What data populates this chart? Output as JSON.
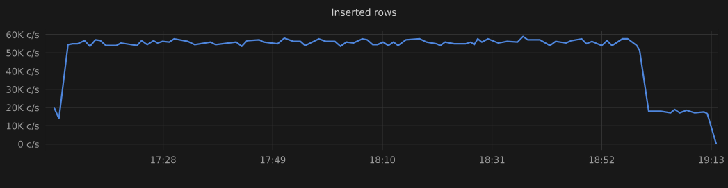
{
  "chart_data": {
    "type": "line",
    "title": "Inserted rows",
    "x": [
      17.119,
      17.134,
      17.163,
      17.178,
      17.194,
      17.216,
      17.233,
      17.251,
      17.266,
      17.284,
      17.317,
      17.332,
      17.383,
      17.398,
      17.416,
      17.436,
      17.449,
      17.465,
      17.486,
      17.502,
      17.546,
      17.568,
      17.619,
      17.634,
      17.7,
      17.718,
      17.735,
      17.773,
      17.788,
      17.832,
      17.854,
      17.883,
      17.905,
      17.92,
      17.964,
      17.986,
      18.015,
      18.033,
      18.052,
      18.074,
      18.103,
      18.118,
      18.136,
      18.151,
      18.169,
      18.186,
      18.202,
      18.217,
      18.242,
      18.286,
      18.308,
      18.339,
      18.352,
      18.367,
      18.396,
      18.433,
      18.449,
      18.46,
      18.471,
      18.484,
      18.504,
      18.537,
      18.565,
      18.598,
      18.616,
      18.631,
      18.669,
      18.702,
      18.72,
      18.753,
      18.77,
      18.803,
      18.818,
      18.836,
      18.867,
      18.884,
      18.9,
      18.933,
      18.95,
      18.979,
      18.988,
      19.017,
      19.056,
      19.087,
      19.1,
      19.116,
      19.138,
      19.164,
      19.193,
      19.204,
      19.232
    ],
    "series": [
      {
        "color": "#4f86dc",
        "values": [
          19800,
          14000,
          54500,
          55000,
          55000,
          56700,
          53600,
          57200,
          56800,
          54000,
          54000,
          55400,
          54000,
          56700,
          54500,
          56700,
          55400,
          56300,
          55900,
          57700,
          56300,
          54500,
          55900,
          54500,
          55900,
          53600,
          56700,
          57200,
          55900,
          55000,
          58100,
          56300,
          56300,
          54000,
          57700,
          56300,
          56300,
          53600,
          55900,
          55400,
          57700,
          57200,
          54500,
          54500,
          55900,
          54000,
          55900,
          54000,
          57200,
          57700,
          55900,
          55000,
          54000,
          55900,
          55000,
          55000,
          55900,
          54500,
          57700,
          55900,
          57700,
          55400,
          56300,
          55900,
          59000,
          57200,
          57200,
          54000,
          56300,
          55400,
          56700,
          57700,
          55000,
          56300,
          54000,
          56700,
          54000,
          57700,
          57700,
          54000,
          51400,
          18000,
          18000,
          17100,
          18900,
          17100,
          18500,
          17100,
          17600,
          16700,
          500
        ]
      }
    ],
    "xlim": [
      17.09,
      19.24
    ],
    "ylim": [
      -3500,
      62500
    ],
    "xticks": [
      {
        "value": 17.4667,
        "label": "17:28"
      },
      {
        "value": 17.8167,
        "label": "17:49"
      },
      {
        "value": 18.1667,
        "label": "18:10"
      },
      {
        "value": 18.5167,
        "label": "18:31"
      },
      {
        "value": 18.8667,
        "label": "18:52"
      },
      {
        "value": 19.2167,
        "label": "19:13"
      }
    ],
    "yticks": [
      {
        "value": 0,
        "label": "0 c/s"
      },
      {
        "value": 10000,
        "label": "10K c/s"
      },
      {
        "value": 20000,
        "label": "20K c/s"
      },
      {
        "value": 30000,
        "label": "30K c/s"
      },
      {
        "value": 40000,
        "label": "40K c/s"
      },
      {
        "value": 50000,
        "label": "50K c/s"
      },
      {
        "value": 60000,
        "label": "60K c/s"
      }
    ],
    "grid": true,
    "marker": "none",
    "line_style": "solid"
  }
}
